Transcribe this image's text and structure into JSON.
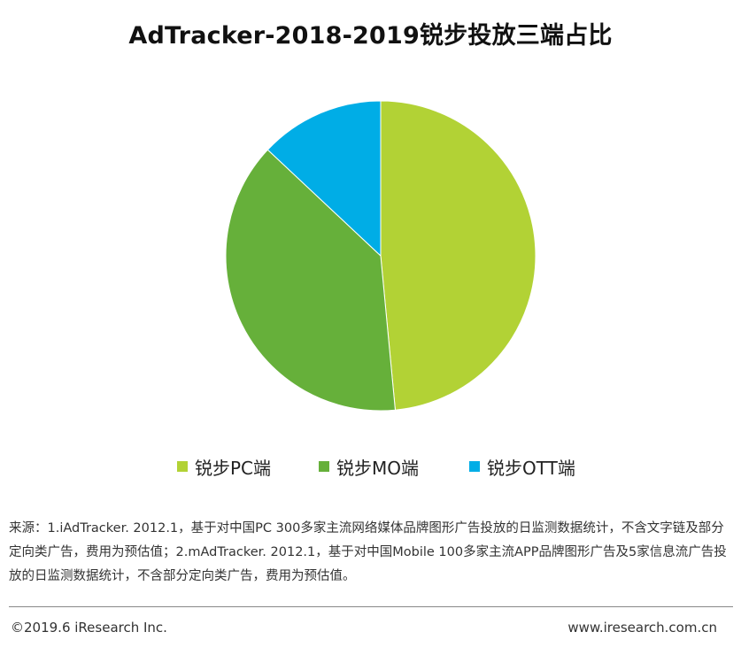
{
  "chart_data": {
    "type": "pie",
    "title": "AdTracker-2018-2019锐步投放三端占比",
    "slices": [
      {
        "name": "锐步PC端",
        "value": 48.5,
        "color": "#b2d235"
      },
      {
        "name": "锐步MO端",
        "value": 38.5,
        "color": "#66b03a"
      },
      {
        "name": "锐步OTT端",
        "value": 13.0,
        "color": "#00ade6"
      }
    ],
    "start_angle_deg": 0,
    "direction": "clockwise",
    "legend_position": "bottom"
  },
  "source_note": "来源：1.iAdTracker. 2012.1，基于对中国PC 300多家主流网络媒体品牌图形广告投放的日监测数据统计，不含文字链及部分定向类广告，费用为预估值；2.mAdTracker. 2012.1，基于对中国Mobile 100多家主流APP品牌图形广告及5家信息流广告投放的日监测数据统计，不含部分定向类广告，费用为预估值。",
  "footer": {
    "copyright": "©2019.6 iResearch Inc.",
    "website": "www.iresearch.com.cn"
  }
}
